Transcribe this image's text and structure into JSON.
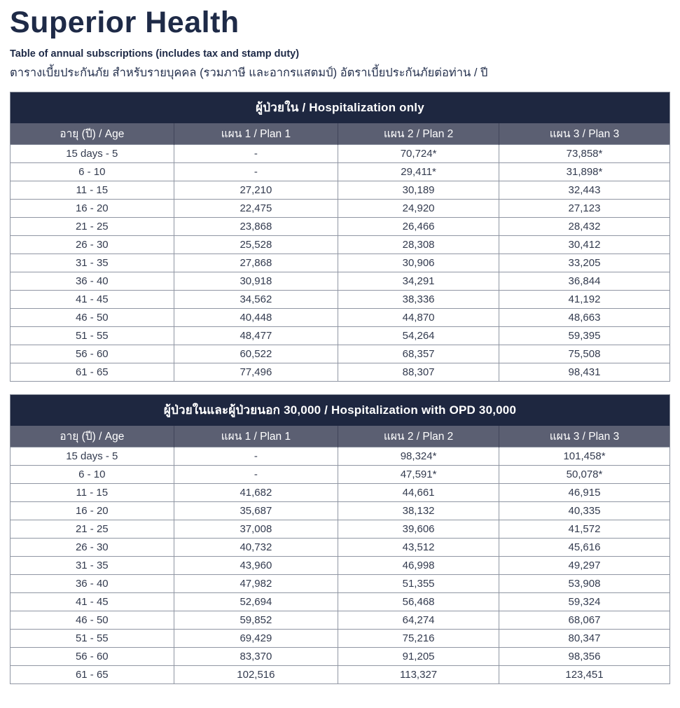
{
  "page": {
    "title": "Superior Health",
    "subtitle_en": "Table of annual subscriptions (includes tax and stamp duty)",
    "subtitle_th": "ตารางเบี้ยประกันภัย สำหรับรายบุคคล (รวมภาษี และอากรแสตมป์) อัตราเบี้ยประกันภัยต่อท่าน / ปี"
  },
  "colors": {
    "navy_band": "#1e2740",
    "slate_subheader": "#5b5f72",
    "title_text": "#1e2a47",
    "body_text": "#333b4f",
    "cell_border": "#9096a3"
  },
  "tables": [
    {
      "title": "ผู้ป่วยใน / Hospitalization only",
      "columns": [
        "อายุ (ปี) / Age",
        "แผน 1 / Plan 1",
        "แผน 2 / Plan 2",
        "แผน 3 / Plan 3"
      ],
      "rows": [
        [
          "15 days - 5",
          "-",
          "70,724*",
          "73,858*"
        ],
        [
          "6 - 10",
          "-",
          "29,411*",
          "31,898*"
        ],
        [
          "11 - 15",
          "27,210",
          "30,189",
          "32,443"
        ],
        [
          "16 - 20",
          "22,475",
          "24,920",
          "27,123"
        ],
        [
          "21 - 25",
          "23,868",
          "26,466",
          "28,432"
        ],
        [
          "26 - 30",
          "25,528",
          "28,308",
          "30,412"
        ],
        [
          "31 - 35",
          "27,868",
          "30,906",
          "33,205"
        ],
        [
          "36 - 40",
          "30,918",
          "34,291",
          "36,844"
        ],
        [
          "41 - 45",
          "34,562",
          "38,336",
          "41,192"
        ],
        [
          "46 - 50",
          "40,448",
          "44,870",
          "48,663"
        ],
        [
          "51 - 55",
          "48,477",
          "54,264",
          "59,395"
        ],
        [
          "56 - 60",
          "60,522",
          "68,357",
          "75,508"
        ],
        [
          "61 - 65",
          "77,496",
          "88,307",
          "98,431"
        ]
      ]
    },
    {
      "title": "ผู้ป่วยในและผู้ป่วยนอก 30,000 / Hospitalization with OPD 30,000",
      "columns": [
        "อายุ (ปี) / Age",
        "แผน 1 / Plan 1",
        "แผน 2 / Plan 2",
        "แผน 3 / Plan 3"
      ],
      "rows": [
        [
          "15 days - 5",
          "-",
          "98,324*",
          "101,458*"
        ],
        [
          "6 - 10",
          "-",
          "47,591*",
          "50,078*"
        ],
        [
          "11 - 15",
          "41,682",
          "44,661",
          "46,915"
        ],
        [
          "16 - 20",
          "35,687",
          "38,132",
          "40,335"
        ],
        [
          "21 - 25",
          "37,008",
          "39,606",
          "41,572"
        ],
        [
          "26 - 30",
          "40,732",
          "43,512",
          "45,616"
        ],
        [
          "31 - 35",
          "43,960",
          "46,998",
          "49,297"
        ],
        [
          "36 - 40",
          "47,982",
          "51,355",
          "53,908"
        ],
        [
          "41 - 45",
          "52,694",
          "56,468",
          "59,324"
        ],
        [
          "46 - 50",
          "59,852",
          "64,274",
          "68,067"
        ],
        [
          "51 - 55",
          "69,429",
          "75,216",
          "80,347"
        ],
        [
          "56 - 60",
          "83,370",
          "91,205",
          "98,356"
        ],
        [
          "61 - 65",
          "102,516",
          "113,327",
          "123,451"
        ]
      ]
    }
  ]
}
